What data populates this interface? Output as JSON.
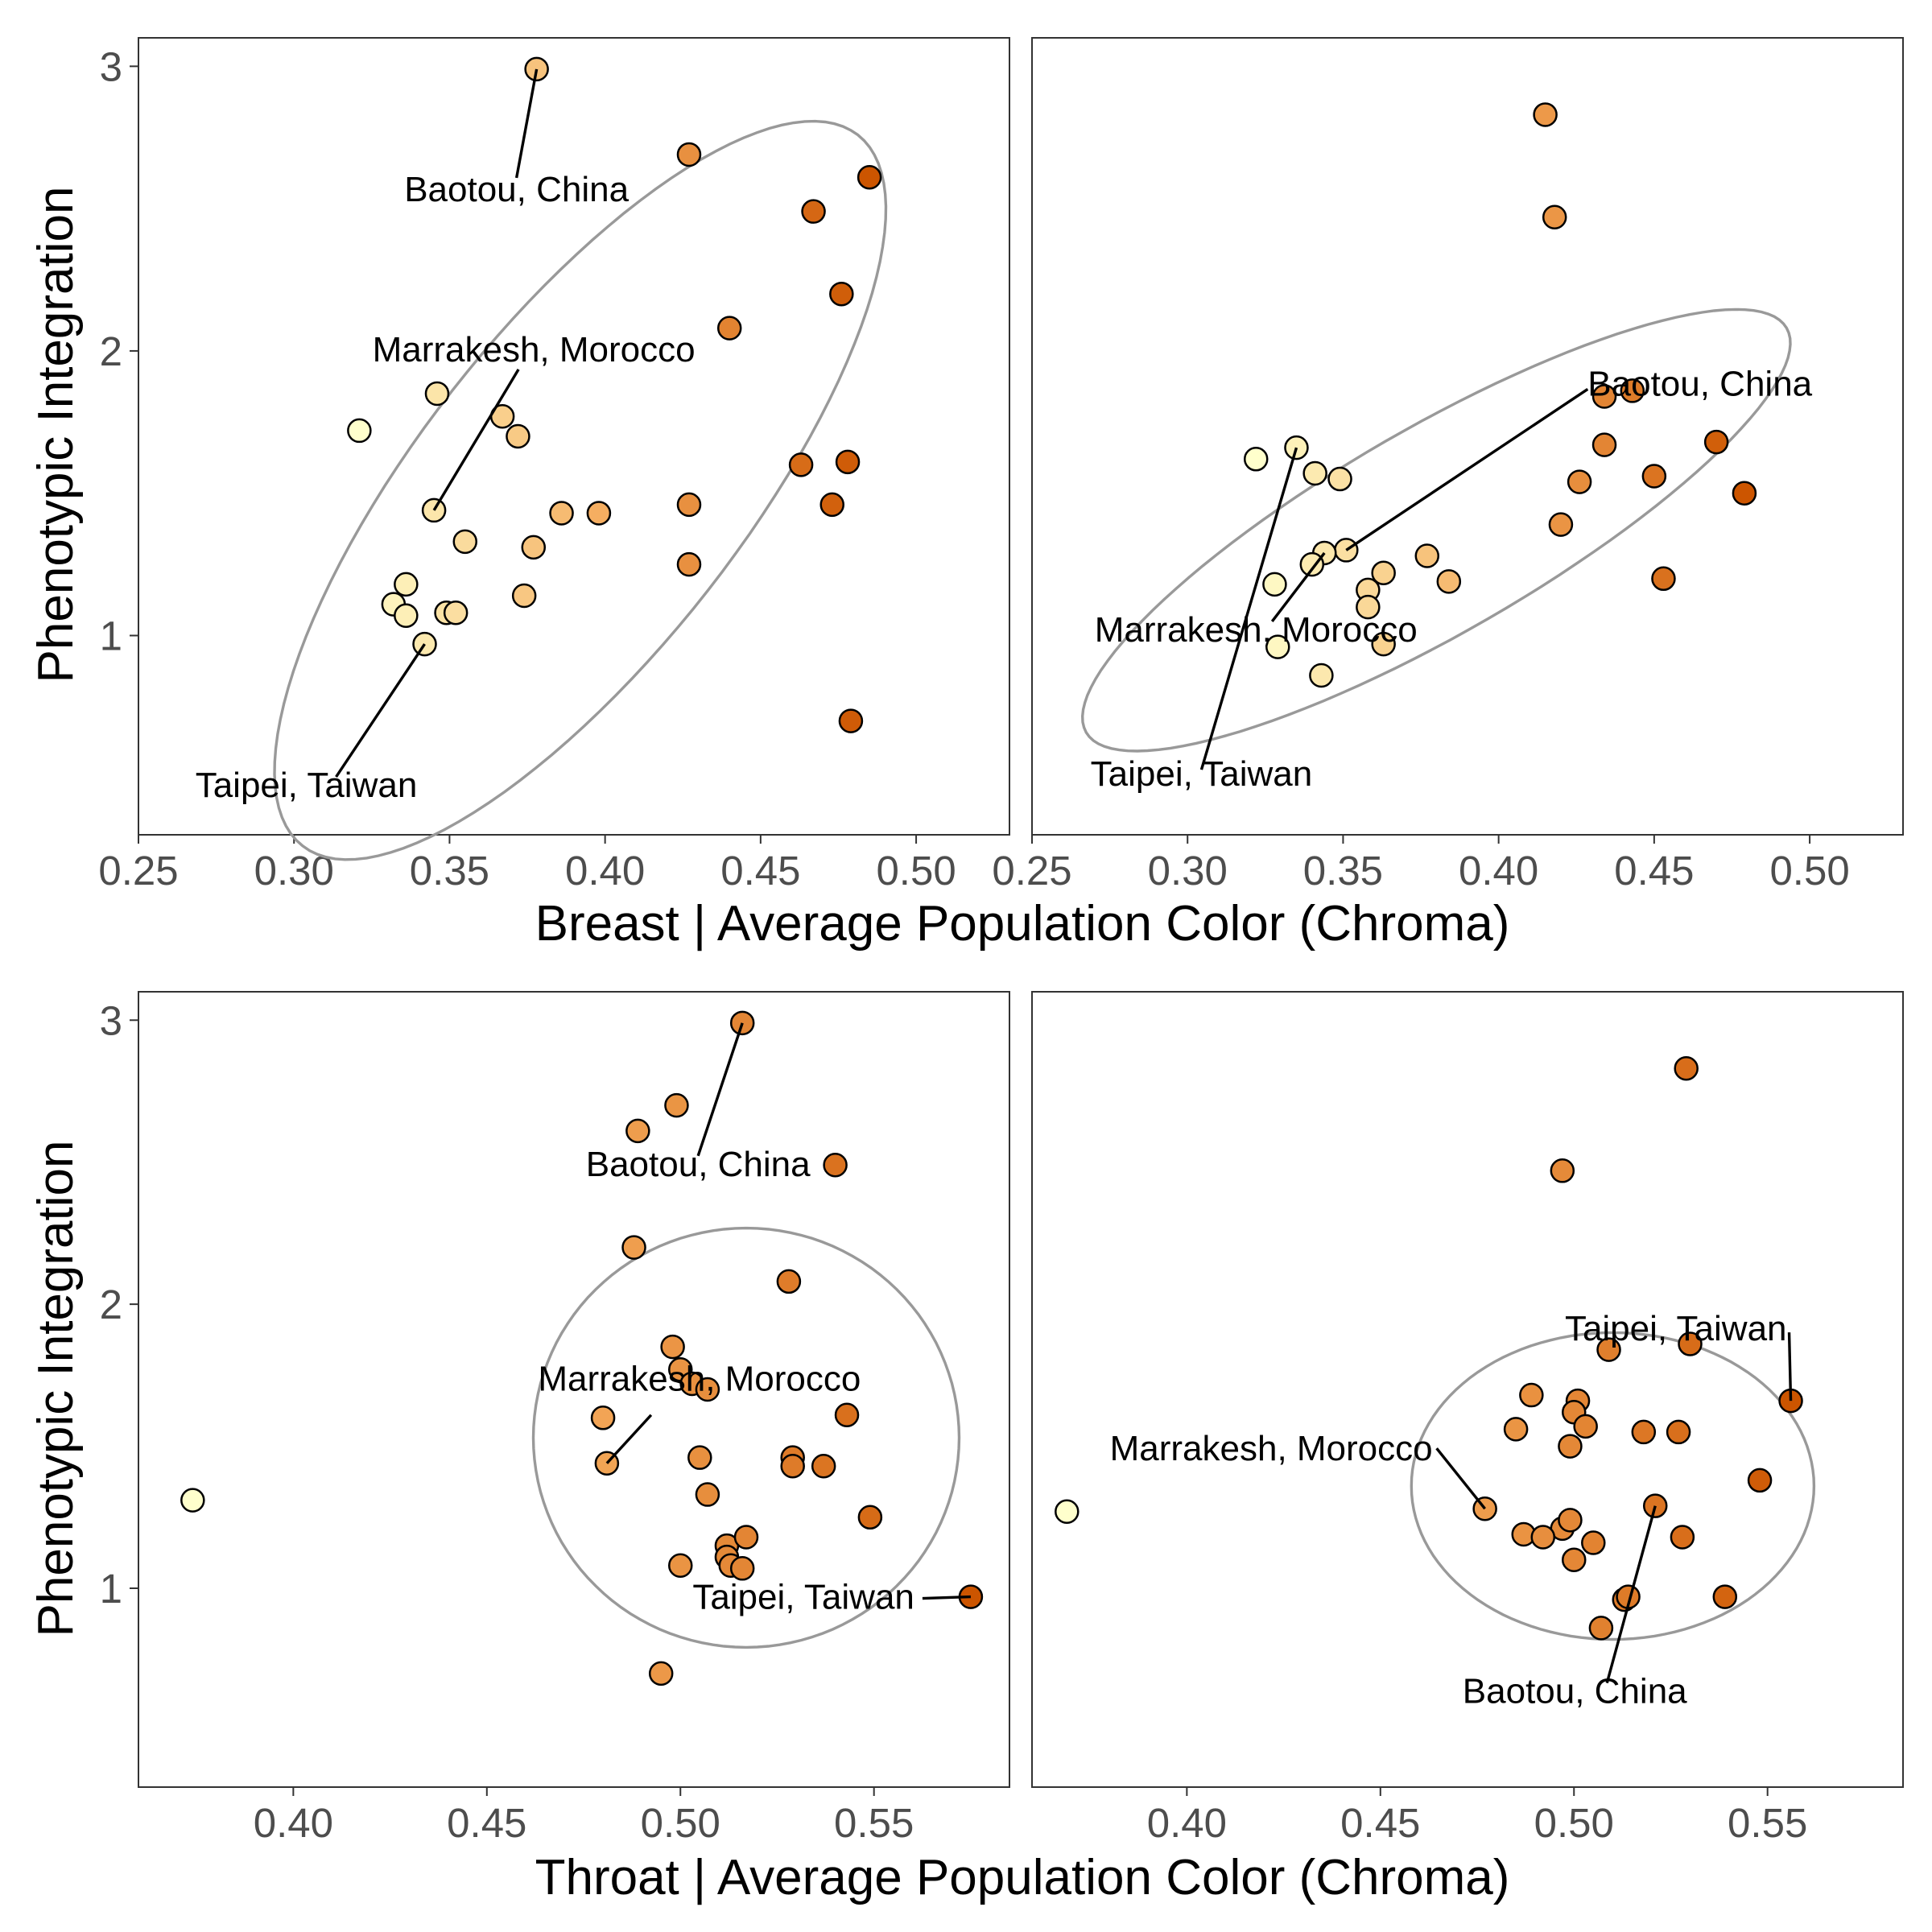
{
  "axis_titles": {
    "y_top": "Phenotypic Integration",
    "y_bottom": "Phenotypic Integration",
    "x_top": "Breast | Average Population Color (Chroma)",
    "x_bottom": "Throat | Average Population Color (Chroma)"
  },
  "colors": {
    "point_outline": "#000000",
    "ellipse": "#999999",
    "frame": "#333333",
    "tick_text": "#4d4d4d",
    "palette_low": "#ffffcc",
    "palette_mid": "#f4a95a",
    "palette_high": "#cc5500"
  },
  "chart_data": [
    {
      "type": "scatter",
      "panel": "top-left",
      "xlabel": "Breast | Average Population Color (Chroma)",
      "ylabel": "Phenotypic Integration",
      "xlim": [
        0.25,
        0.53
      ],
      "ylim": [
        0.3,
        3.1
      ],
      "xticks": [
        "0.25",
        "0.30",
        "0.35",
        "0.40",
        "0.45",
        "0.50"
      ],
      "yticks": [
        "1",
        "2",
        "3"
      ],
      "grid": false,
      "points": [
        [
          0.378,
          2.99
        ],
        [
          0.427,
          2.69
        ],
        [
          0.485,
          2.61
        ],
        [
          0.467,
          2.49
        ],
        [
          0.476,
          2.2
        ],
        [
          0.44,
          2.08
        ],
        [
          0.321,
          1.72
        ],
        [
          0.346,
          1.85
        ],
        [
          0.367,
          1.77
        ],
        [
          0.372,
          1.7
        ],
        [
          0.463,
          1.6
        ],
        [
          0.478,
          1.61
        ],
        [
          0.345,
          1.44
        ],
        [
          0.386,
          1.43
        ],
        [
          0.398,
          1.43
        ],
        [
          0.427,
          1.46
        ],
        [
          0.473,
          1.46
        ],
        [
          0.355,
          1.33
        ],
        [
          0.377,
          1.31
        ],
        [
          0.427,
          1.25
        ],
        [
          0.336,
          1.18
        ],
        [
          0.332,
          1.11
        ],
        [
          0.374,
          1.14
        ],
        [
          0.336,
          1.07
        ],
        [
          0.349,
          1.08
        ],
        [
          0.352,
          1.08
        ],
        [
          0.342,
          0.97
        ],
        [
          0.479,
          0.7
        ]
      ],
      "ellipse": {
        "cx": 0.392,
        "cy": 1.51,
        "rx": 0.145,
        "ry": 0.95,
        "rotation_deg": 52
      },
      "annotations": [
        {
          "text": "Baotou, China",
          "x": 0.378,
          "y": 2.99
        },
        {
          "text": "Marrakesh, Morocco",
          "x": 0.345,
          "y": 1.44
        },
        {
          "text": "Taipei, Taiwan",
          "x": 0.342,
          "y": 0.97
        }
      ]
    },
    {
      "type": "scatter",
      "panel": "top-right",
      "xlabel": "Breast | Average Population Color (Chroma)",
      "ylabel": "",
      "xlim": [
        0.25,
        0.53
      ],
      "ylim": [
        0.3,
        3.1
      ],
      "xticks": [
        "0.25",
        "0.30",
        "0.35",
        "0.40",
        "0.45",
        "0.50"
      ],
      "yticks": [],
      "grid": false,
      "points": [
        [
          0.415,
          2.83
        ],
        [
          0.418,
          2.47
        ],
        [
          0.434,
          1.84
        ],
        [
          0.443,
          1.86
        ],
        [
          0.322,
          1.62
        ],
        [
          0.335,
          1.66
        ],
        [
          0.341,
          1.57
        ],
        [
          0.349,
          1.55
        ],
        [
          0.434,
          1.67
        ],
        [
          0.47,
          1.68
        ],
        [
          0.426,
          1.54
        ],
        [
          0.45,
          1.56
        ],
        [
          0.479,
          1.5
        ],
        [
          0.42,
          1.39
        ],
        [
          0.351,
          1.3
        ],
        [
          0.344,
          1.29
        ],
        [
          0.34,
          1.25
        ],
        [
          0.377,
          1.28
        ],
        [
          0.363,
          1.22
        ],
        [
          0.328,
          1.18
        ],
        [
          0.384,
          1.19
        ],
        [
          0.358,
          1.16
        ],
        [
          0.358,
          1.1
        ],
        [
          0.453,
          1.2
        ],
        [
          0.329,
          0.96
        ],
        [
          0.363,
          0.97
        ],
        [
          0.343,
          0.86
        ]
      ],
      "ellipse": {
        "cx": 0.38,
        "cy": 1.37,
        "rx": 0.13,
        "ry": 0.6,
        "rotation_deg": 30
      },
      "annotations": [
        {
          "text": "Baotou, China",
          "x": 0.351,
          "y": 1.3
        },
        {
          "text": "Marrakesh, Morocco",
          "x": 0.344,
          "y": 1.29
        },
        {
          "text": "Taipei, Taiwan",
          "x": 0.335,
          "y": 1.66
        }
      ]
    },
    {
      "type": "scatter",
      "panel": "bottom-left",
      "xlabel": "Throat | Average Population Color (Chroma)",
      "ylabel": "Phenotypic Integration",
      "xlim": [
        0.36,
        0.585
      ],
      "ylim": [
        0.3,
        3.1
      ],
      "xticks": [
        "0.40",
        "0.45",
        "0.50",
        "0.55"
      ],
      "yticks": [
        "1",
        "2",
        "3"
      ],
      "grid": false,
      "points": [
        [
          0.516,
          2.99
        ],
        [
          0.499,
          2.7
        ],
        [
          0.489,
          2.61
        ],
        [
          0.54,
          2.49
        ],
        [
          0.488,
          2.2
        ],
        [
          0.528,
          2.08
        ],
        [
          0.498,
          1.85
        ],
        [
          0.5,
          1.77
        ],
        [
          0.503,
          1.72
        ],
        [
          0.507,
          1.7
        ],
        [
          0.48,
          1.6
        ],
        [
          0.543,
          1.61
        ],
        [
          0.481,
          1.44
        ],
        [
          0.505,
          1.46
        ],
        [
          0.529,
          1.46
        ],
        [
          0.529,
          1.43
        ],
        [
          0.537,
          1.43
        ],
        [
          0.507,
          1.33
        ],
        [
          0.549,
          1.25
        ],
        [
          0.512,
          1.15
        ],
        [
          0.517,
          1.18
        ],
        [
          0.512,
          1.11
        ],
        [
          0.513,
          1.08
        ],
        [
          0.516,
          1.07
        ],
        [
          0.5,
          1.08
        ],
        [
          0.575,
          0.97
        ],
        [
          0.495,
          0.7
        ],
        [
          0.374,
          1.31
        ]
      ],
      "ellipse": {
        "cx": 0.517,
        "cy": 1.53,
        "rx": 0.055,
        "ry": 1.23,
        "rotation_deg": 0
      },
      "annotations": [
        {
          "text": "Baotou, China",
          "x": 0.516,
          "y": 2.99
        },
        {
          "text": "Marrakesh, Morocco",
          "x": 0.481,
          "y": 1.44
        },
        {
          "text": "Taipei, Taiwan",
          "x": 0.575,
          "y": 0.97
        }
      ]
    },
    {
      "type": "scatter",
      "panel": "bottom-right",
      "xlabel": "Throat | Average Population Color (Chroma)",
      "ylabel": "",
      "xlim": [
        0.36,
        0.585
      ],
      "ylim": [
        0.3,
        3.1
      ],
      "xticks": [
        "0.40",
        "0.45",
        "0.50",
        "0.55"
      ],
      "yticks": [],
      "grid": false,
      "points": [
        [
          0.529,
          2.83
        ],
        [
          0.497,
          2.47
        ],
        [
          0.509,
          1.84
        ],
        [
          0.53,
          1.86
        ],
        [
          0.489,
          1.68
        ],
        [
          0.501,
          1.66
        ],
        [
          0.556,
          1.66
        ],
        [
          0.5,
          1.62
        ],
        [
          0.485,
          1.56
        ],
        [
          0.503,
          1.57
        ],
        [
          0.518,
          1.55
        ],
        [
          0.527,
          1.55
        ],
        [
          0.499,
          1.5
        ],
        [
          0.548,
          1.38
        ],
        [
          0.477,
          1.28
        ],
        [
          0.521,
          1.29
        ],
        [
          0.487,
          1.19
        ],
        [
          0.497,
          1.21
        ],
        [
          0.499,
          1.24
        ],
        [
          0.492,
          1.18
        ],
        [
          0.505,
          1.16
        ],
        [
          0.528,
          1.18
        ],
        [
          0.5,
          1.1
        ],
        [
          0.513,
          0.96
        ],
        [
          0.514,
          0.97
        ],
        [
          0.539,
          0.97
        ],
        [
          0.507,
          0.86
        ],
        [
          0.369,
          1.27
        ]
      ],
      "ellipse": {
        "cx": 0.51,
        "cy": 1.36,
        "rx": 0.052,
        "ry": 0.9,
        "rotation_deg": 0
      },
      "annotations": [
        {
          "text": "Taipei, Taiwan",
          "x": 0.556,
          "y": 1.66
        },
        {
          "text": "Marrakesh, Morocco",
          "x": 0.477,
          "y": 1.28
        },
        {
          "text": "Baotou, China",
          "x": 0.521,
          "y": 1.29
        }
      ]
    }
  ]
}
